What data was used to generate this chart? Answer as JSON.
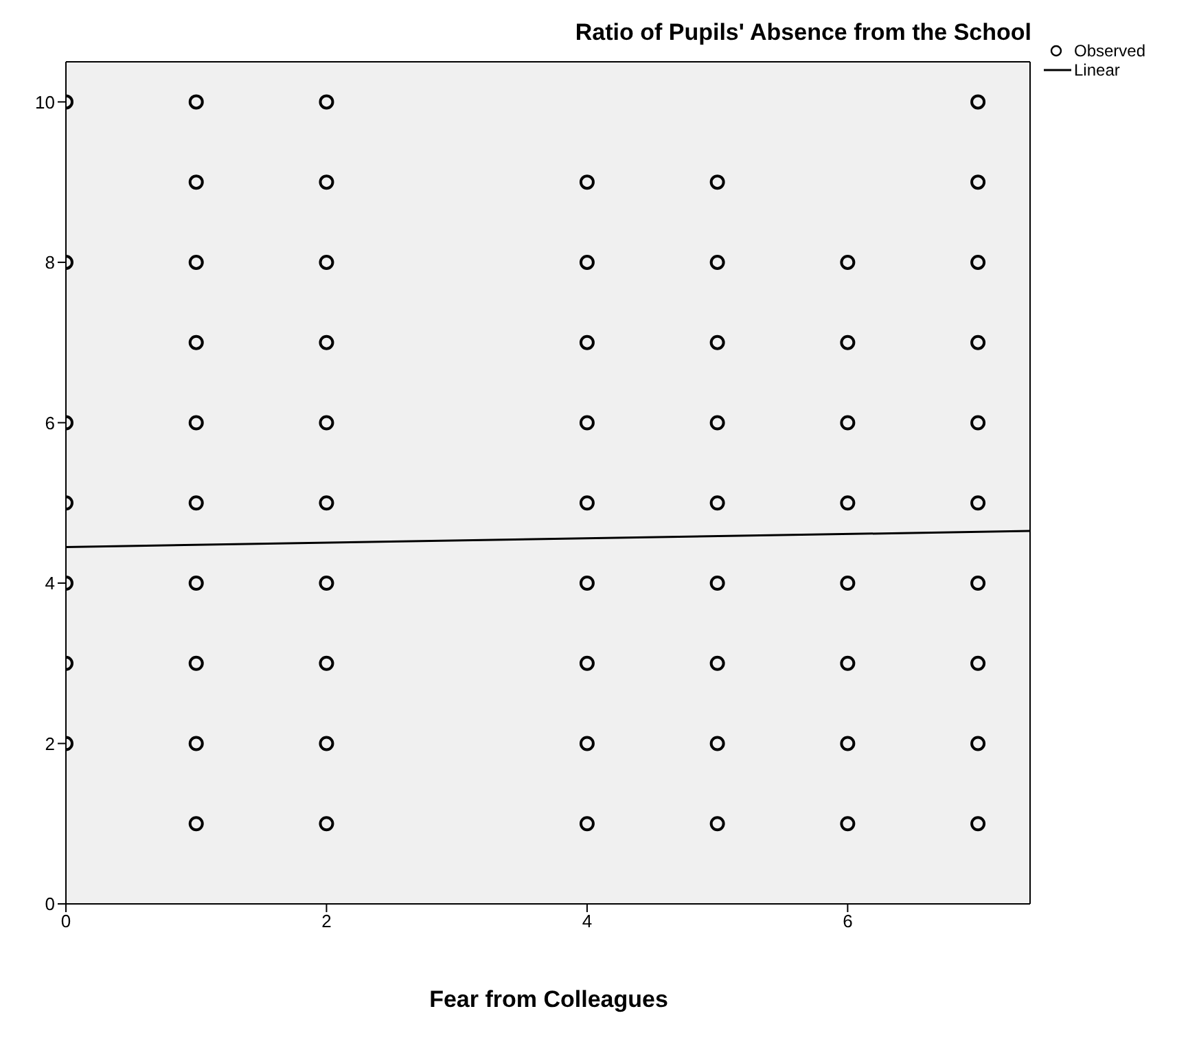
{
  "chart_data": {
    "type": "scatter",
    "title": "Ratio of Pupils' Absence from the School",
    "xlabel": "Fear from Colleagues",
    "series": [
      {
        "name": "Observed",
        "color": "#000000",
        "marker": "circle",
        "x": [
          0,
          0,
          0,
          0,
          0,
          0,
          0,
          1,
          1,
          1,
          1,
          1,
          1,
          1,
          1,
          1,
          1,
          2,
          2,
          2,
          2,
          2,
          2,
          2,
          2,
          2,
          2,
          4,
          4,
          4,
          4,
          4,
          4,
          4,
          4,
          4,
          5,
          5,
          5,
          5,
          5,
          5,
          5,
          5,
          5,
          6,
          6,
          6,
          6,
          6,
          6,
          6,
          6,
          7,
          7,
          7,
          7,
          7,
          7,
          7,
          7,
          7,
          7
        ],
        "values": [
          10,
          8,
          6,
          5,
          4,
          3,
          2,
          10,
          9,
          8,
          7,
          6,
          5,
          4,
          3,
          2,
          1,
          10,
          9,
          8,
          7,
          6,
          5,
          4,
          3,
          2,
          1,
          9,
          8,
          7,
          6,
          5,
          4,
          3,
          2,
          1,
          9,
          8,
          7,
          6,
          5,
          4,
          3,
          2,
          1,
          8,
          7,
          6,
          5,
          4,
          3,
          2,
          1,
          10,
          9,
          8,
          7,
          6,
          5,
          4,
          3,
          2,
          1
        ]
      },
      {
        "name": "Linear",
        "type": "line",
        "color": "#000000",
        "line_style": "solid",
        "x": [
          0,
          7.4
        ],
        "values": [
          4.45,
          4.65
        ]
      }
    ],
    "xlim": [
      0,
      7.4
    ],
    "xticks": [
      0,
      2,
      4,
      6
    ],
    "ylim": [
      0,
      10.5
    ],
    "yticks": [
      0,
      2,
      4,
      6,
      8,
      10
    ],
    "legend": "top right"
  }
}
